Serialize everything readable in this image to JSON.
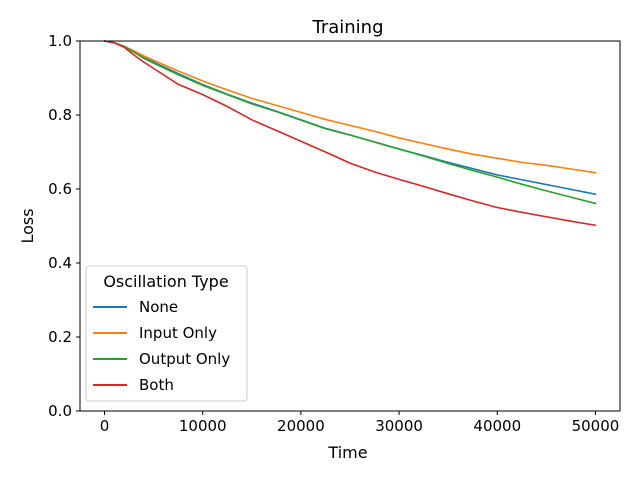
{
  "chart_data": {
    "type": "line",
    "title": "Training",
    "xlabel": "Time",
    "ylabel": "Loss",
    "xlim": [
      -2500,
      52500
    ],
    "ylim": [
      0.0,
      1.0
    ],
    "x_ticks": [
      0,
      10000,
      20000,
      30000,
      40000,
      50000
    ],
    "x_tick_labels": [
      "0",
      "10000",
      "20000",
      "30000",
      "40000",
      "50000"
    ],
    "y_ticks": [
      0.0,
      0.2,
      0.4,
      0.6,
      0.8,
      1.0
    ],
    "y_tick_labels": [
      "0.0",
      "0.2",
      "0.4",
      "0.6",
      "0.8",
      "1.0"
    ],
    "grid": false,
    "legend": {
      "title": "Oscillation Type",
      "placement": "lower-left"
    },
    "x": [
      0,
      1000,
      2000,
      3000,
      4000,
      5000,
      7500,
      10000,
      12500,
      15000,
      17500,
      20000,
      22500,
      25000,
      27500,
      30000,
      32500,
      35000,
      37500,
      40000,
      42500,
      45000,
      47500,
      50000
    ],
    "series": [
      {
        "name": "None",
        "color": "#1f77b4",
        "values": [
          1.0,
          0.995,
          0.985,
          0.97,
          0.955,
          0.943,
          0.912,
          0.882,
          0.856,
          0.832,
          0.81,
          0.787,
          0.764,
          0.746,
          0.727,
          0.708,
          0.69,
          0.672,
          0.655,
          0.638,
          0.625,
          0.612,
          0.599,
          0.586
        ]
      },
      {
        "name": "Input Only",
        "color": "#ff7f0e",
        "values": [
          1.0,
          0.995,
          0.986,
          0.973,
          0.96,
          0.948,
          0.919,
          0.892,
          0.868,
          0.845,
          0.826,
          0.807,
          0.788,
          0.772,
          0.756,
          0.738,
          0.723,
          0.708,
          0.694,
          0.683,
          0.672,
          0.664,
          0.654,
          0.644
        ]
      },
      {
        "name": "Output Only",
        "color": "#2ca02c",
        "values": [
          1.0,
          0.995,
          0.985,
          0.97,
          0.953,
          0.94,
          0.909,
          0.88,
          0.855,
          0.83,
          0.809,
          0.786,
          0.763,
          0.746,
          0.727,
          0.708,
          0.689,
          0.669,
          0.65,
          0.632,
          0.613,
          0.595,
          0.578,
          0.561
        ]
      },
      {
        "name": "Both",
        "color": "#d62728",
        "values": [
          1.0,
          0.995,
          0.983,
          0.962,
          0.943,
          0.926,
          0.883,
          0.855,
          0.823,
          0.787,
          0.758,
          0.729,
          0.7,
          0.67,
          0.646,
          0.626,
          0.607,
          0.587,
          0.568,
          0.55,
          0.537,
          0.525,
          0.513,
          0.502
        ]
      }
    ]
  }
}
